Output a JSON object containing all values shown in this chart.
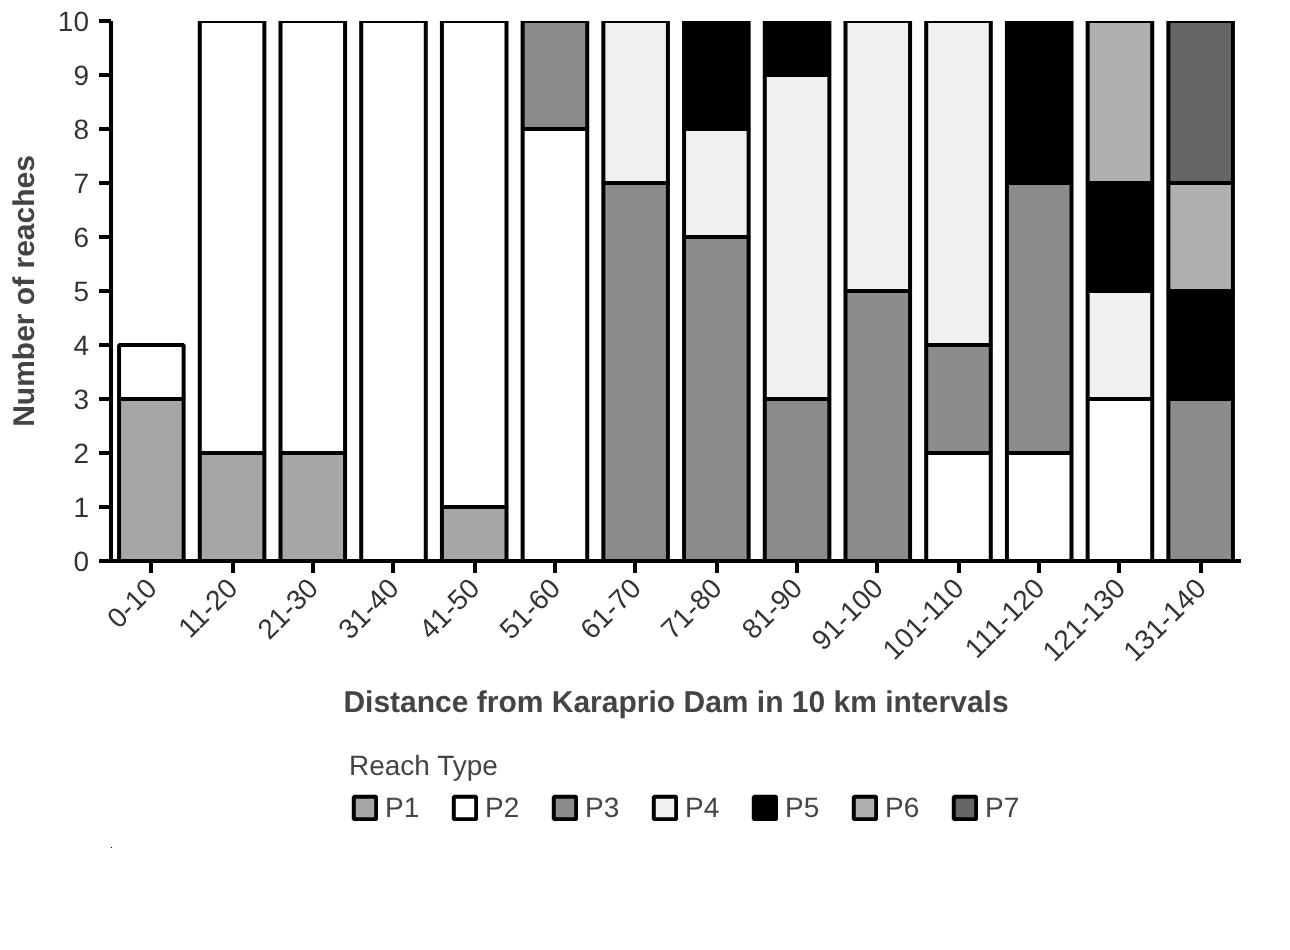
{
  "chart_data": {
    "type": "bar",
    "stacked": true,
    "xlabel": "Distance from Karaprio Dam in 10 km intervals",
    "ylabel": "Number of reaches",
    "legend_title": "Reach Type",
    "legend": "bottom",
    "grid": false,
    "categories": [
      "0-10",
      "11-20",
      "21-30",
      "31-40",
      "41-50",
      "51-60",
      "61-70",
      "71-80",
      "81-90",
      "91-100",
      "101-110",
      "111-120",
      "121-130",
      "131-140"
    ],
    "ylim": [
      0,
      10
    ],
    "yticks": [
      0,
      1,
      2,
      3,
      4,
      5,
      6,
      7,
      8,
      9,
      10
    ],
    "series": [
      {
        "name": "P1",
        "color": "#a6a6a6",
        "values": [
          3,
          2,
          2,
          null,
          1,
          null,
          null,
          null,
          null,
          null,
          null,
          null,
          null,
          null
        ]
      },
      {
        "name": "P2",
        "color": "#ffffff",
        "values": [
          1,
          8,
          8,
          10,
          9,
          8,
          null,
          null,
          null,
          null,
          2,
          2,
          3,
          null
        ]
      },
      {
        "name": "P3",
        "color": "#8c8c8c",
        "values": [
          null,
          null,
          null,
          null,
          null,
          2,
          7,
          6,
          3,
          5,
          2,
          5,
          null,
          3
        ]
      },
      {
        "name": "P4",
        "color": "#f0f0f0",
        "values": [
          null,
          null,
          null,
          null,
          null,
          null,
          3,
          2,
          6,
          5,
          6,
          null,
          2,
          null
        ]
      },
      {
        "name": "P5",
        "color": "#000000",
        "values": [
          null,
          null,
          null,
          null,
          null,
          null,
          null,
          2,
          1,
          null,
          null,
          3,
          2,
          2
        ]
      },
      {
        "name": "P6",
        "color": "#b0b0b0",
        "values": [
          null,
          null,
          null,
          null,
          null,
          null,
          null,
          null,
          null,
          null,
          null,
          null,
          3,
          2
        ]
      },
      {
        "name": "P7",
        "color": "#666666",
        "values": [
          null,
          null,
          null,
          null,
          null,
          null,
          null,
          null,
          null,
          null,
          null,
          null,
          null,
          3
        ]
      }
    ]
  }
}
